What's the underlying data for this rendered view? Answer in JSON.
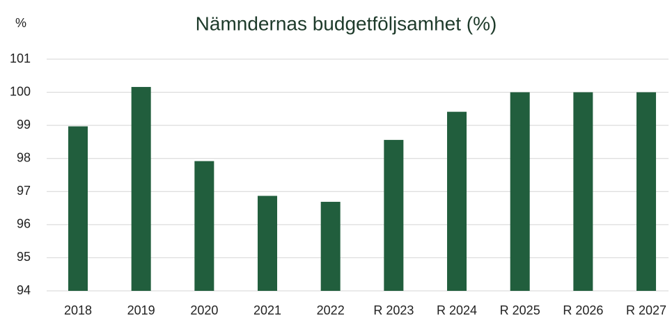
{
  "chart_data": {
    "type": "bar",
    "title": "Nämndernas budgetföljsamhet (%)",
    "y_label": "%",
    "categories": [
      "2018",
      "2019",
      "2020",
      "2021",
      "2022",
      "R 2023",
      "R 2024",
      "R 2025",
      "R 2026",
      "R 2027"
    ],
    "values": [
      98.97,
      100.16,
      97.92,
      96.87,
      96.69,
      98.56,
      99.41,
      100,
      100,
      100
    ],
    "color": "#215e3d",
    "ylim": [
      94,
      101
    ],
    "yticks": [
      94,
      95,
      96,
      97,
      98,
      99,
      100,
      101
    ],
    "grid": true
  }
}
